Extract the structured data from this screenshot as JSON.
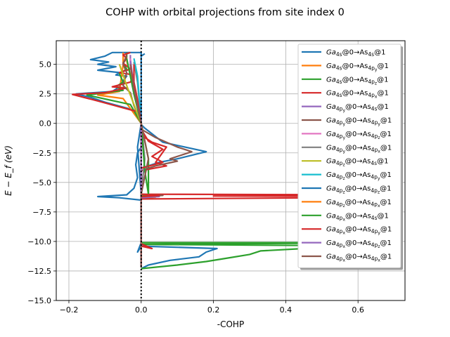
{
  "chart_data": {
    "type": "line",
    "title": "COHP with orbital projections from site index 0",
    "xlabel": "-COHP",
    "ylabel": "E − E_f (eV)",
    "xlim": [
      -0.235,
      0.73
    ],
    "ylim": [
      -15.0,
      7.0
    ],
    "xticks": [
      -0.2,
      0.0,
      0.2,
      0.4,
      0.6
    ],
    "xtick_labels": [
      "−0.2",
      "0.0",
      "0.2",
      "0.4",
      "0.6"
    ],
    "yticks": [
      -15.0,
      -12.5,
      -10.0,
      -7.5,
      -5.0,
      -2.5,
      0.0,
      2.5,
      5.0
    ],
    "ytick_labels": [
      "−15.0",
      "−12.5",
      "−10.0",
      "−7.5",
      "−5.0",
      "−2.5",
      "0.0",
      "2.5",
      "5.0"
    ],
    "grid": true,
    "legend_position": "top-right",
    "fermi_line": {
      "x": 0.0,
      "style": "dotted",
      "color": "#000000"
    },
    "legend": [
      {
        "main": "Ga",
        "s1": "4s",
        "mid": "@0→As",
        "s2": "4s",
        "tail": "@1",
        "color": "#1f77b4"
      },
      {
        "main": "Ga",
        "s1": "4s",
        "mid": "@0→As",
        "s2": "4p_y",
        "tail": "@1",
        "color": "#ff7f0e"
      },
      {
        "main": "Ga",
        "s1": "4s",
        "mid": "@0→As",
        "s2": "4p_z",
        "tail": "@1",
        "color": "#2ca02c"
      },
      {
        "main": "Ga",
        "s1": "4s",
        "mid": "@0→As",
        "s2": "4p_x",
        "tail": "@1",
        "color": "#d62728"
      },
      {
        "main": "Ga",
        "s1": "4p_y",
        "mid": "@0→As",
        "s2": "4s",
        "tail": "@1",
        "color": "#9467bd"
      },
      {
        "main": "Ga",
        "s1": "4p_y",
        "mid": "@0→As",
        "s2": "4p_y",
        "tail": "@1",
        "color": "#8c564b"
      },
      {
        "main": "Ga",
        "s1": "4p_y",
        "mid": "@0→As",
        "s2": "4p_z",
        "tail": "@1",
        "color": "#e377c2"
      },
      {
        "main": "Ga",
        "s1": "4p_y",
        "mid": "@0→As",
        "s2": "4p_x",
        "tail": "@1",
        "color": "#7f7f7f"
      },
      {
        "main": "Ga",
        "s1": "4p_z",
        "mid": "@0→As",
        "s2": "4s",
        "tail": "@1",
        "color": "#bcbd22"
      },
      {
        "main": "Ga",
        "s1": "4p_z",
        "mid": "@0→As",
        "s2": "4p_y",
        "tail": "@1",
        "color": "#17becf"
      },
      {
        "main": "Ga",
        "s1": "4p_z",
        "mid": "@0→As",
        "s2": "4p_z",
        "tail": "@1",
        "color": "#1f77b4"
      },
      {
        "main": "Ga",
        "s1": "4p_z",
        "mid": "@0→As",
        "s2": "4p_x",
        "tail": "@1",
        "color": "#ff7f0e"
      },
      {
        "main": "Ga",
        "s1": "4p_x",
        "mid": "@0→As",
        "s2": "4s",
        "tail": "@1",
        "color": "#2ca02c"
      },
      {
        "main": "Ga",
        "s1": "4p_x",
        "mid": "@0→As",
        "s2": "4p_y",
        "tail": "@1",
        "color": "#d62728"
      },
      {
        "main": "Ga",
        "s1": "4p_x",
        "mid": "@0→As",
        "s2": "4p_z",
        "tail": "@1",
        "color": "#9467bd"
      },
      {
        "main": "Ga",
        "s1": "4p_x",
        "mid": "@0→As",
        "s2": "4p_x",
        "tail": "@1",
        "color": "#8c564b"
      }
    ],
    "series": [
      {
        "name": "Ga4s@0→As4s@1",
        "color": "#1f77b4",
        "points": [
          [
            0.0,
            -12.3
          ],
          [
            0.02,
            -12.0
          ],
          [
            0.08,
            -11.6
          ],
          [
            0.16,
            -11.3
          ],
          [
            0.18,
            -10.9
          ],
          [
            0.21,
            -10.6
          ],
          [
            0.0,
            -10.4
          ],
          [
            -0.01,
            -10.9
          ],
          [
            0.0,
            -10.1
          ],
          [
            0.0,
            -6.5
          ],
          [
            -0.06,
            -6.3
          ],
          [
            -0.12,
            -6.2
          ],
          [
            -0.04,
            -6.05
          ],
          [
            -0.02,
            -5.5
          ],
          [
            -0.01,
            -4.6
          ],
          [
            -0.015,
            -3.5
          ],
          [
            -0.01,
            -2.5
          ],
          [
            0.0,
            -2.0
          ],
          [
            0.0,
            -0.1
          ],
          [
            0.01,
            -0.4
          ],
          [
            0.06,
            -1.6
          ],
          [
            0.18,
            -2.4
          ],
          [
            0.1,
            -3.0
          ],
          [
            0.05,
            -3.3
          ],
          [
            0.0,
            -3.8
          ],
          [
            0.0,
            -4.5
          ],
          [
            0.0,
            0.0
          ],
          [
            0.0,
            0.9
          ],
          [
            -0.04,
            1.3
          ],
          [
            -0.1,
            1.8
          ],
          [
            -0.14,
            2.2
          ],
          [
            -0.18,
            2.5
          ],
          [
            -0.08,
            2.7
          ],
          [
            -0.06,
            3.1
          ],
          [
            -0.05,
            3.6
          ],
          [
            -0.04,
            4.0
          ],
          [
            -0.07,
            4.1
          ],
          [
            -0.06,
            4.3
          ],
          [
            -0.12,
            4.5
          ],
          [
            -0.07,
            4.8
          ],
          [
            -0.12,
            5.0
          ],
          [
            -0.09,
            5.2
          ],
          [
            -0.14,
            5.4
          ],
          [
            -0.1,
            5.7
          ],
          [
            -0.08,
            6.0
          ],
          [
            0.0,
            6.0
          ],
          [
            0.0,
            5.7
          ],
          [
            0.01,
            5.9
          ]
        ]
      },
      {
        "name": "Ga4s@0→As4p_y@1",
        "color": "#ff7f0e",
        "points": [
          [
            0.0,
            -12.2
          ],
          [
            0.0,
            -6.4
          ],
          [
            0.04,
            -6.25
          ],
          [
            0.0,
            -6.1
          ],
          [
            0.0,
            0.0
          ],
          [
            -0.05,
            2.1
          ],
          [
            -0.12,
            2.4
          ],
          [
            -0.06,
            2.7
          ],
          [
            -0.05,
            5.0
          ],
          [
            -0.05,
            6.0
          ]
        ]
      },
      {
        "name": "Ga4s@0→As4p_z@1",
        "color": "#2ca02c",
        "points": [
          [
            0.0,
            -12.3
          ],
          [
            0.1,
            -12.0
          ],
          [
            0.18,
            -11.7
          ],
          [
            0.24,
            -11.4
          ],
          [
            0.3,
            -11.1
          ],
          [
            0.33,
            -10.8
          ],
          [
            0.45,
            -10.6
          ],
          [
            0.72,
            -10.4
          ],
          [
            0.0,
            -10.25
          ],
          [
            0.5,
            -10.15
          ],
          [
            0.72,
            -10.1
          ],
          [
            0.0,
            -10.1
          ],
          [
            0.0,
            -6.4
          ],
          [
            0.02,
            -6.1
          ],
          [
            0.02,
            -3.0
          ],
          [
            0.0,
            0.0
          ],
          [
            -0.03,
            1.6
          ],
          [
            -0.15,
            2.4
          ],
          [
            -0.05,
            2.8
          ],
          [
            -0.07,
            3.1
          ],
          [
            -0.05,
            3.5
          ],
          [
            -0.06,
            4.2
          ],
          [
            -0.04,
            4.6
          ],
          [
            -0.05,
            5.1
          ],
          [
            -0.04,
            5.6
          ],
          [
            -0.04,
            6.0
          ]
        ]
      },
      {
        "name": "Ga4s@0→As4p_x@1",
        "color": "#d62728",
        "points": [
          [
            0.0,
            -12.2
          ],
          [
            0.0,
            -10.4
          ],
          [
            0.03,
            -10.6
          ],
          [
            0.0,
            -10.2
          ],
          [
            0.0,
            -6.4
          ],
          [
            0.5,
            -6.3
          ],
          [
            0.72,
            -6.2
          ],
          [
            0.2,
            -6.15
          ],
          [
            0.72,
            -6.05
          ],
          [
            0.0,
            -6.0
          ],
          [
            0.0,
            -1.0
          ],
          [
            0.03,
            -1.6
          ],
          [
            0.07,
            -2.0
          ],
          [
            0.04,
            -3.3
          ],
          [
            0.07,
            -3.6
          ],
          [
            0.0,
            -4.0
          ],
          [
            0.0,
            0.0
          ],
          [
            0.0,
            0.9
          ],
          [
            -0.06,
            1.4
          ],
          [
            -0.12,
            1.9
          ],
          [
            -0.19,
            2.45
          ],
          [
            -0.1,
            2.6
          ],
          [
            -0.04,
            3.0
          ],
          [
            -0.08,
            3.1
          ],
          [
            -0.03,
            3.5
          ],
          [
            -0.02,
            4.1
          ],
          [
            -0.06,
            4.3
          ],
          [
            -0.03,
            4.6
          ],
          [
            -0.05,
            5.1
          ],
          [
            -0.04,
            5.5
          ],
          [
            -0.05,
            5.8
          ],
          [
            -0.03,
            6.0
          ]
        ]
      },
      {
        "name": "Ga4p_y@0→As4s@1",
        "color": "#9467bd",
        "points": [
          [
            0.0,
            -12.2
          ],
          [
            0.0,
            -6.3
          ],
          [
            0.05,
            -6.2
          ],
          [
            0.0,
            -6.0
          ],
          [
            0.0,
            0.0
          ],
          [
            -0.02,
            2.5
          ],
          [
            -0.03,
            5.0
          ],
          [
            -0.03,
            5.8
          ]
        ]
      },
      {
        "name": "Ga4p_y@0→As4p_y@1",
        "color": "#8c564b",
        "points": [
          [
            0.0,
            -12.2
          ],
          [
            0.0,
            -6.2
          ],
          [
            0.06,
            -6.1
          ],
          [
            0.0,
            -6.0
          ],
          [
            0.0,
            -0.5
          ],
          [
            0.04,
            -1.2
          ],
          [
            0.1,
            -2.0
          ],
          [
            0.14,
            -2.4
          ],
          [
            0.08,
            -3.0
          ],
          [
            0.1,
            -3.2
          ],
          [
            0.04,
            -3.6
          ],
          [
            0.0,
            -4.0
          ],
          [
            0.0,
            0.0
          ],
          [
            -0.02,
            1.5
          ],
          [
            -0.03,
            2.6
          ],
          [
            -0.05,
            3.2
          ],
          [
            -0.04,
            4.3
          ],
          [
            -0.05,
            5.0
          ],
          [
            -0.04,
            5.8
          ]
        ]
      },
      {
        "name": "Ga4p_y@0→As4p_z@1",
        "color": "#e377c2",
        "points": [
          [
            0.0,
            -12.2
          ],
          [
            0.0,
            0.0
          ],
          [
            -0.02,
            3.0
          ],
          [
            -0.03,
            5.5
          ]
        ]
      },
      {
        "name": "Ga4p_y@0→As4p_x@1",
        "color": "#7f7f7f",
        "points": [
          [
            0.0,
            -12.2
          ],
          [
            0.0,
            -6.0
          ],
          [
            0.01,
            -3.0
          ],
          [
            0.0,
            0.0
          ],
          [
            -0.01,
            3.5
          ],
          [
            -0.02,
            5.2
          ]
        ]
      },
      {
        "name": "Ga4p_z@0→As4s@1",
        "color": "#bcbd22",
        "points": [
          [
            0.0,
            -12.2
          ],
          [
            0.0,
            0.0
          ],
          [
            -0.04,
            3.2
          ],
          [
            -0.06,
            5.0
          ]
        ]
      },
      {
        "name": "Ga4p_z@0→As4p_y@1",
        "color": "#17becf",
        "points": [
          [
            0.0,
            -12.2
          ],
          [
            0.0,
            0.0
          ],
          [
            -0.01,
            4.0
          ],
          [
            -0.02,
            5.5
          ]
        ]
      },
      {
        "name": "Ga4p_z@0→As4p_z@1",
        "color": "#1f77b4",
        "points": [
          [
            0.0,
            -12.2
          ],
          [
            0.0,
            -6.0
          ],
          [
            -0.01,
            -2.0
          ],
          [
            0.0,
            0.0
          ],
          [
            0.0,
            1.0
          ],
          [
            0.0,
            6.0
          ]
        ]
      },
      {
        "name": "Ga4p_z@0→As4p_x@1",
        "color": "#ff7f0e",
        "points": [
          [
            0.0,
            -12.2
          ],
          [
            0.0,
            0.0
          ],
          [
            -0.02,
            3.0
          ],
          [
            -0.04,
            5.3
          ]
        ]
      },
      {
        "name": "Ga4p_x@0→As4s@1",
        "color": "#2ca02c",
        "points": [
          [
            0.0,
            -12.2
          ],
          [
            0.0,
            -6.2
          ],
          [
            0.02,
            -6.0
          ],
          [
            0.01,
            -4.0
          ],
          [
            0.0,
            0.0
          ],
          [
            -0.02,
            2.5
          ],
          [
            -0.03,
            4.0
          ],
          [
            -0.04,
            5.5
          ]
        ]
      },
      {
        "name": "Ga4p_x@0→As4p_y@1",
        "color": "#d62728",
        "points": [
          [
            0.0,
            -12.2
          ],
          [
            0.0,
            -6.2
          ],
          [
            0.05,
            -6.1
          ],
          [
            0.0,
            -6.0
          ],
          [
            0.0,
            -0.5
          ],
          [
            0.02,
            -1.5
          ],
          [
            0.06,
            -2.2
          ],
          [
            0.03,
            -2.8
          ],
          [
            0.06,
            -3.3
          ],
          [
            0.0,
            -3.8
          ],
          [
            0.0,
            0.0
          ],
          [
            -0.01,
            2.0
          ],
          [
            -0.02,
            3.5
          ],
          [
            -0.02,
            5.0
          ]
        ]
      },
      {
        "name": "Ga4p_x@0→As4p_z@1",
        "color": "#9467bd",
        "points": [
          [
            0.0,
            -12.2
          ],
          [
            0.0,
            0.0
          ],
          [
            -0.02,
            3.0
          ],
          [
            -0.03,
            5.3
          ]
        ]
      },
      {
        "name": "Ga4p_x@0→As4p_x@1",
        "color": "#8c564b",
        "points": [
          [
            0.0,
            -12.2
          ],
          [
            0.0,
            -6.0
          ],
          [
            0.02,
            -3.0
          ],
          [
            0.0,
            0.0
          ],
          [
            -0.02,
            3.0
          ],
          [
            -0.03,
            5.0
          ]
        ]
      }
    ]
  }
}
